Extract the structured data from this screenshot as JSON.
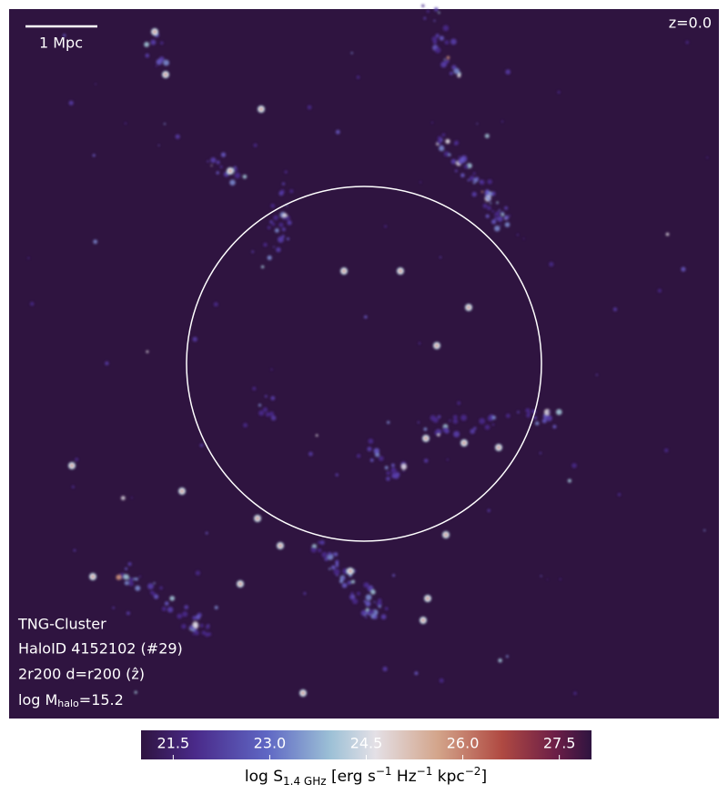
{
  "image": {
    "scale_label": "1 Mpc",
    "redshift": "z=0.0",
    "info": [
      "TNG-Cluster",
      "HaloID 4152102 (#29)",
      "2r200 d=r200 (ẑ)"
    ],
    "mass_label": [
      "log M",
      "halo",
      "=15.2"
    ]
  },
  "colorbar": {
    "lim": [
      21,
      28
    ],
    "ticks": [
      21.5,
      {
        "value": 23,
        "label": "23.0"
      },
      24.5,
      {
        "value": 26,
        "label": "26.0"
      },
      27.5
    ],
    "label": [
      "log S",
      "1.4 GHz",
      " [erg s",
      "−1",
      " Hz",
      "−1",
      " kpc",
      "−2",
      "]"
    ]
  }
}
